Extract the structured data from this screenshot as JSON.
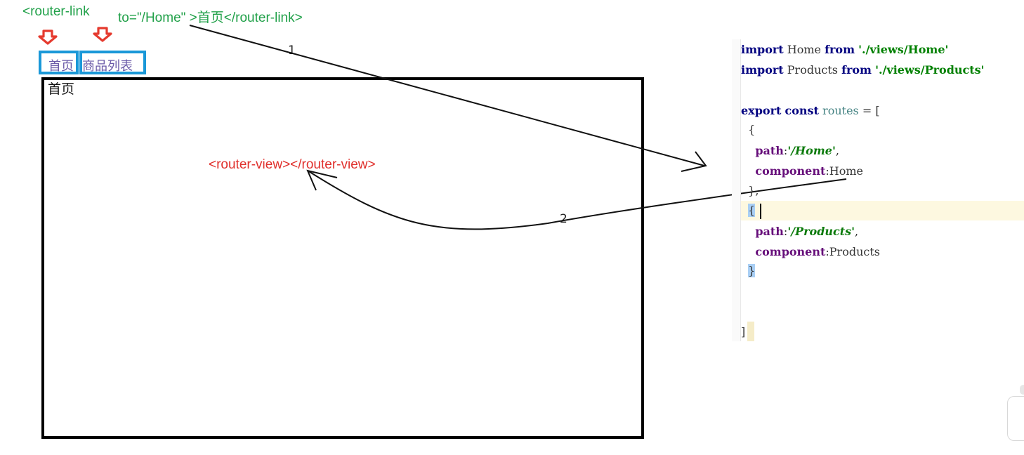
{
  "annotations": {
    "router_link_open": "<router-link",
    "router_link_close": "to=\"/Home\" >首页</router-link>",
    "router_view": "<router-view></router-view>",
    "step_1": "1",
    "step_2": "2"
  },
  "nav": {
    "home": "首页",
    "products": "商品列表"
  },
  "view": {
    "heading": "首页"
  },
  "code": {
    "lines": [
      {
        "tokens": [
          {
            "t": "import",
            "c": "kw"
          },
          {
            "t": " Home ",
            "c": "plain"
          },
          {
            "t": "from",
            "c": "kw"
          },
          {
            "t": " ",
            "c": "plain"
          },
          {
            "t": "'./views/Home'",
            "c": "str"
          }
        ]
      },
      {
        "tokens": [
          {
            "t": "import",
            "c": "kw"
          },
          {
            "t": " Products ",
            "c": "plain"
          },
          {
            "t": "from",
            "c": "kw"
          },
          {
            "t": " ",
            "c": "plain"
          },
          {
            "t": "'./views/Products'",
            "c": "str"
          }
        ]
      },
      {
        "tokens": []
      },
      {
        "tokens": [
          {
            "t": "export",
            "c": "kw"
          },
          {
            "t": " ",
            "c": "plain"
          },
          {
            "t": "const",
            "c": "kw"
          },
          {
            "t": " ",
            "c": "plain"
          },
          {
            "t": "routes",
            "c": "var"
          },
          {
            "t": " = [",
            "c": "plain"
          }
        ]
      },
      {
        "tokens": [
          {
            "t": "  {",
            "c": "plain"
          }
        ]
      },
      {
        "tokens": [
          {
            "t": "    ",
            "c": "plain"
          },
          {
            "t": "path",
            "c": "prop"
          },
          {
            "t": ":",
            "c": "plain"
          },
          {
            "t": "'/Home'",
            "c": "str-i"
          },
          {
            "t": ",",
            "c": "plain"
          }
        ]
      },
      {
        "tokens": [
          {
            "t": "    ",
            "c": "plain"
          },
          {
            "t": "component",
            "c": "prop"
          },
          {
            "t": ":Home",
            "c": "plain"
          }
        ]
      },
      {
        "tokens": [
          {
            "t": "  },",
            "c": "plain"
          }
        ]
      },
      {
        "tokens": [
          {
            "t": "  ",
            "c": "plain"
          },
          {
            "t": "{",
            "c": "brace-hl"
          }
        ]
      },
      {
        "tokens": [
          {
            "t": "    ",
            "c": "plain"
          },
          {
            "t": "path",
            "c": "prop"
          },
          {
            "t": ":",
            "c": "plain"
          },
          {
            "t": "'/Products'",
            "c": "str-i"
          },
          {
            "t": ",",
            "c": "plain"
          }
        ]
      },
      {
        "tokens": [
          {
            "t": "    ",
            "c": "plain"
          },
          {
            "t": "component",
            "c": "prop"
          },
          {
            "t": ":Products",
            "c": "plain"
          }
        ]
      },
      {
        "tokens": [
          {
            "t": "  ",
            "c": "plain"
          },
          {
            "t": "}",
            "c": "brace-hl"
          }
        ]
      },
      {
        "tokens": []
      },
      {
        "tokens": []
      },
      {
        "tokens": [
          {
            "t": "]",
            "c": "plain"
          }
        ]
      }
    ]
  },
  "colors": {
    "annotation_green": "#22a14a",
    "router_view_red": "#e0302c",
    "nav_border_blue": "#1a98d8",
    "marker_red": "#e53a2e"
  },
  "icons": {
    "down_arrow": "down-arrow-icon"
  }
}
